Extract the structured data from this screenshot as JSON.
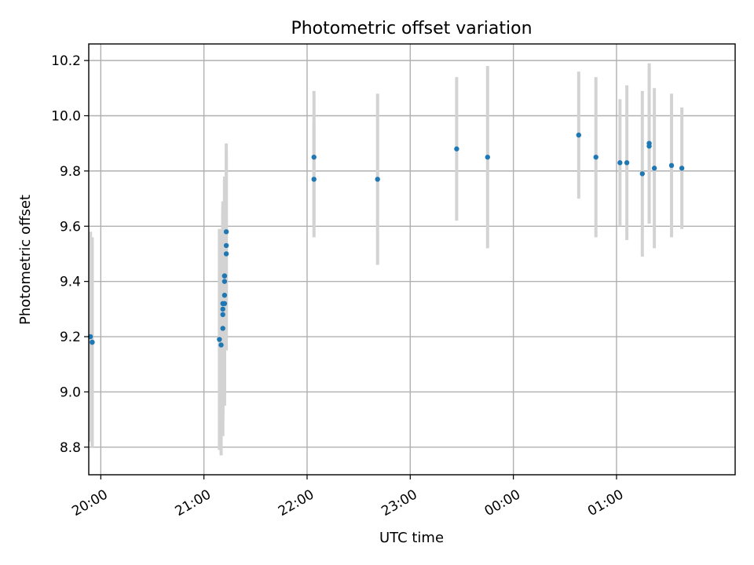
{
  "chart_data": {
    "type": "scatter",
    "title": "Photometric offset variation",
    "xlabel": "UTC time",
    "ylabel": "Photometric offset",
    "grid": true,
    "ylim": [
      8.7,
      10.26
    ],
    "xlim": [
      "19:53",
      "02:09"
    ],
    "x_ticks": [
      {
        "time": "20:00",
        "label": "20:00"
      },
      {
        "time": "21:00",
        "label": "21:00"
      },
      {
        "time": "22:00",
        "label": "22:00"
      },
      {
        "time": "23:00",
        "label": "23:00"
      },
      {
        "time": "00:00",
        "label": "00:00"
      },
      {
        "time": "01:00",
        "label": "01:00"
      }
    ],
    "y_ticks": [
      8.8,
      9.0,
      9.2,
      9.4,
      9.6,
      9.8,
      10.0,
      10.2
    ],
    "y_tick_labels": [
      "8.8",
      "9.0",
      "9.2",
      "9.4",
      "9.6",
      "9.8",
      "10.0",
      "10.2"
    ],
    "colors": {
      "points": "#1f77b4",
      "error_bars": "#d3d3d3",
      "grid": "#b0b0b0"
    },
    "points": [
      {
        "time": "19:54",
        "y": 9.2,
        "yerr": 0.38
      },
      {
        "time": "19:55",
        "y": 9.18,
        "yerr": 0.38
      },
      {
        "time": "19:55",
        "y": 9.18,
        "yerr": 0.37
      },
      {
        "time": "21:09",
        "y": 9.19,
        "yerr": 0.4
      },
      {
        "time": "21:10",
        "y": 9.17,
        "yerr": 0.4
      },
      {
        "time": "21:11",
        "y": 9.23,
        "yerr": 0.39
      },
      {
        "time": "21:11",
        "y": 9.28,
        "yerr": 0.38
      },
      {
        "time": "21:11",
        "y": 9.3,
        "yerr": 0.37
      },
      {
        "time": "21:11",
        "y": 9.32,
        "yerr": 0.37
      },
      {
        "time": "21:12",
        "y": 9.35,
        "yerr": 0.36
      },
      {
        "time": "21:12",
        "y": 9.32,
        "yerr": 0.37
      },
      {
        "time": "21:12",
        "y": 9.4,
        "yerr": 0.36
      },
      {
        "time": "21:12",
        "y": 9.42,
        "yerr": 0.36
      },
      {
        "time": "21:12",
        "y": 9.42,
        "yerr": 0.35
      },
      {
        "time": "21:13",
        "y": 9.5,
        "yerr": 0.35
      },
      {
        "time": "21:13",
        "y": 9.53,
        "yerr": 0.34
      },
      {
        "time": "21:13",
        "y": 9.58,
        "yerr": 0.32
      },
      {
        "time": "22:04",
        "y": 9.85,
        "yerr": 0.24
      },
      {
        "time": "22:04",
        "y": 9.77,
        "yerr": 0.21
      },
      {
        "time": "22:41",
        "y": 9.77,
        "yerr": 0.31
      },
      {
        "time": "23:27",
        "y": 9.88,
        "yerr": 0.26
      },
      {
        "time": "23:45",
        "y": 9.85,
        "yerr": 0.33
      },
      {
        "time": "00:38",
        "y": 9.93,
        "yerr": 0.23
      },
      {
        "time": "00:48",
        "y": 9.85,
        "yerr": 0.29
      },
      {
        "time": "01:02",
        "y": 9.83,
        "yerr": 0.23
      },
      {
        "time": "01:06",
        "y": 9.83,
        "yerr": 0.28
      },
      {
        "time": "01:15",
        "y": 9.79,
        "yerr": 0.3
      },
      {
        "time": "01:19",
        "y": 9.9,
        "yerr": 0.29
      },
      {
        "time": "01:19",
        "y": 9.89,
        "yerr": 0.28
      },
      {
        "time": "01:22",
        "y": 9.81,
        "yerr": 0.29
      },
      {
        "time": "01:32",
        "y": 9.82,
        "yerr": 0.26
      },
      {
        "time": "01:38",
        "y": 9.81,
        "yerr": 0.22
      }
    ]
  }
}
